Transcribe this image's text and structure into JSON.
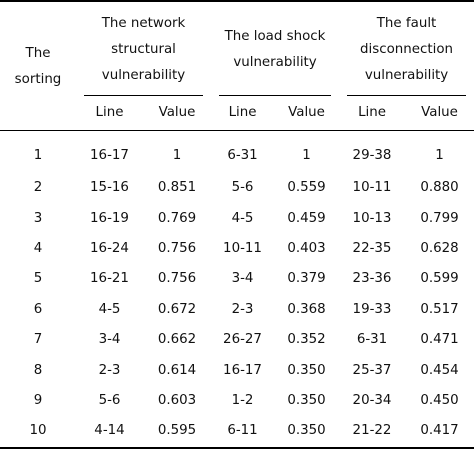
{
  "headers": {
    "sorting": [
      "The",
      "sorting"
    ],
    "groups": [
      {
        "lines": [
          "The network",
          "structural",
          "vulnerability"
        ]
      },
      {
        "lines": [
          "The load shock",
          "vulnerability"
        ]
      },
      {
        "lines": [
          "The fault",
          "disconnection",
          "vulnerability"
        ]
      }
    ],
    "sub": {
      "line": "Line",
      "value": "Value"
    }
  },
  "rows": [
    {
      "rank": "1",
      "g1_line": "16-17",
      "g1_value": "1",
      "g2_line": "6-31",
      "g2_value": "1",
      "g3_line": "29-38",
      "g3_value": "1"
    },
    {
      "rank": "2",
      "g1_line": "15-16",
      "g1_value": "0.851",
      "g2_line": "5-6",
      "g2_value": "0.559",
      "g3_line": "10-11",
      "g3_value": "0.880"
    },
    {
      "rank": "3",
      "g1_line": "16-19",
      "g1_value": "0.769",
      "g2_line": "4-5",
      "g2_value": "0.459",
      "g3_line": "10-13",
      "g3_value": "0.799"
    },
    {
      "rank": "4",
      "g1_line": "16-24",
      "g1_value": "0.756",
      "g2_line": "10-11",
      "g2_value": "0.403",
      "g3_line": "22-35",
      "g3_value": "0.628"
    },
    {
      "rank": "5",
      "g1_line": "16-21",
      "g1_value": "0.756",
      "g2_line": "3-4",
      "g2_value": "0.379",
      "g3_line": "23-36",
      "g3_value": "0.599"
    },
    {
      "rank": "6",
      "g1_line": "4-5",
      "g1_value": "0.672",
      "g2_line": "2-3",
      "g2_value": "0.368",
      "g3_line": "19-33",
      "g3_value": "0.517"
    },
    {
      "rank": "7",
      "g1_line": "3-4",
      "g1_value": "0.662",
      "g2_line": "26-27",
      "g2_value": "0.352",
      "g3_line": "6-31",
      "g3_value": "0.471"
    },
    {
      "rank": "8",
      "g1_line": "2-3",
      "g1_value": "0.614",
      "g2_line": "16-17",
      "g2_value": "0.350",
      "g3_line": "25-37",
      "g3_value": "0.454"
    },
    {
      "rank": "9",
      "g1_line": "5-6",
      "g1_value": "0.603",
      "g2_line": "1-2",
      "g2_value": "0.350",
      "g3_line": "20-34",
      "g3_value": "0.450"
    },
    {
      "rank": "10",
      "g1_line": "4-14",
      "g1_value": "0.595",
      "g2_line": "6-11",
      "g2_value": "0.350",
      "g3_line": "21-22",
      "g3_value": "0.417"
    }
  ]
}
